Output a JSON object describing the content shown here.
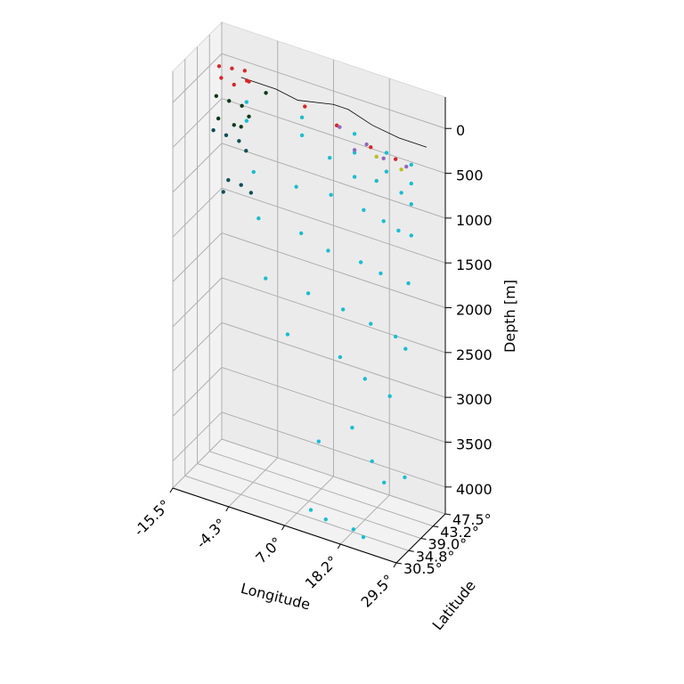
{
  "chart_data": {
    "type": "scatter",
    "projection": "3d",
    "grid": true,
    "xlabel": "Longitude",
    "ylabel": "Latitude",
    "zlabel": "Depth [m]",
    "x_ticks": [
      "-15.5°",
      "-4.3°",
      "7.0°",
      "18.2°",
      "29.5°"
    ],
    "y_ticks": [
      "30.5°",
      "34.8°",
      "39.0°",
      "43.2°",
      "47.5°"
    ],
    "z_ticks": [
      "0",
      "500",
      "1000",
      "1500",
      "2000",
      "2500",
      "3000",
      "3500",
      "4000"
    ],
    "xlim": [
      -15.5,
      29.5
    ],
    "ylim": [
      30.5,
      47.5
    ],
    "zlim": [
      -350,
      4300
    ],
    "z_inverted": true,
    "colors": {
      "cyan": "#17becf",
      "red": "#d62728",
      "dark_green": "#0a3a1a",
      "teal": "#0e4f57",
      "purple": "#9467bd",
      "olive": "#bcbd22",
      "coastline": "#000000"
    },
    "series": [
      {
        "color": "cyan",
        "points": [
          [
            -5,
            38,
            40
          ],
          [
            5,
            40,
            90
          ],
          [
            15,
            41,
            120
          ],
          [
            22,
            40,
            170
          ],
          [
            27,
            40,
            210
          ],
          [
            -5,
            38,
            250
          ],
          [
            5,
            40,
            290
          ],
          [
            15,
            41,
            330
          ],
          [
            22,
            40,
            380
          ],
          [
            27,
            40,
            420
          ],
          [
            10,
            41,
            480
          ],
          [
            20,
            40,
            520
          ],
          [
            25,
            40,
            560
          ],
          [
            15,
            41,
            600
          ],
          [
            27,
            40,
            650
          ],
          [
            -3,
            37,
            750
          ],
          [
            5,
            38,
            800
          ],
          [
            12,
            38,
            760
          ],
          [
            18,
            39,
            850
          ],
          [
            22,
            39,
            900
          ],
          [
            25,
            39,
            950
          ],
          [
            27,
            40,
            1000
          ],
          [
            -2,
            37,
            1250
          ],
          [
            6,
            38,
            1300
          ],
          [
            12,
            37,
            1350
          ],
          [
            18,
            38,
            1400
          ],
          [
            22,
            38,
            1450
          ],
          [
            27,
            39,
            1500
          ],
          [
            0,
            36,
            1850
          ],
          [
            8,
            37,
            1900
          ],
          [
            15,
            37,
            1950
          ],
          [
            20,
            38,
            2050
          ],
          [
            25,
            38,
            2100
          ],
          [
            27,
            38,
            2200
          ],
          [
            5,
            35,
            2350
          ],
          [
            15,
            36,
            2450
          ],
          [
            20,
            36,
            2600
          ],
          [
            25,
            36,
            2700
          ],
          [
            13,
            32,
            3300
          ],
          [
            18,
            35,
            3150
          ],
          [
            22,
            35,
            3450
          ],
          [
            28,
            36,
            3550
          ],
          [
            25,
            34,
            3600
          ],
          [
            12,
            31,
            4050
          ],
          [
            15,
            31,
            4100
          ],
          [
            20,
            32,
            4150
          ],
          [
            22,
            32,
            4200
          ]
        ]
      },
      {
        "color": "red",
        "points": [
          [
            -14,
            44,
            0
          ],
          [
            -12,
            45,
            20
          ],
          [
            -10,
            46,
            40
          ],
          [
            -8,
            44,
            60
          ],
          [
            -13,
            43,
            80
          ],
          [
            -9,
            45,
            100
          ],
          [
            -11,
            44,
            150
          ],
          [
            5,
            41,
            0
          ],
          [
            12,
            40,
            50
          ],
          [
            20,
            38,
            80
          ],
          [
            25,
            38,
            120
          ]
        ]
      },
      {
        "color": "dark_green",
        "points": [
          [
            -14,
            43,
            300
          ],
          [
            -12,
            44,
            350
          ],
          [
            -10,
            45,
            400
          ],
          [
            -8,
            44,
            450
          ],
          [
            -13,
            42,
            500
          ],
          [
            -9,
            43,
            550
          ],
          [
            -11,
            44,
            600
          ],
          [
            -4,
            43,
            80
          ]
        ]
      },
      {
        "color": "teal",
        "points": [
          [
            -14,
            42,
            650
          ],
          [
            -12,
            43,
            700
          ],
          [
            -10,
            44,
            760
          ],
          [
            -8,
            43,
            800
          ],
          [
            -11,
            42,
            1150
          ],
          [
            -9,
            43,
            1200
          ],
          [
            -7,
            43,
            1250
          ],
          [
            -12,
            42,
            1300
          ]
        ]
      },
      {
        "color": "purple",
        "points": [
          [
            12,
            41,
            100
          ],
          [
            18,
            40,
            150
          ],
          [
            22,
            39,
            200
          ],
          [
            26,
            40,
            250
          ],
          [
            15,
            41,
            300
          ]
        ]
      },
      {
        "color": "olive",
        "points": [
          [
            20,
            40,
            250
          ],
          [
            25,
            40,
            300
          ]
        ]
      }
    ]
  }
}
